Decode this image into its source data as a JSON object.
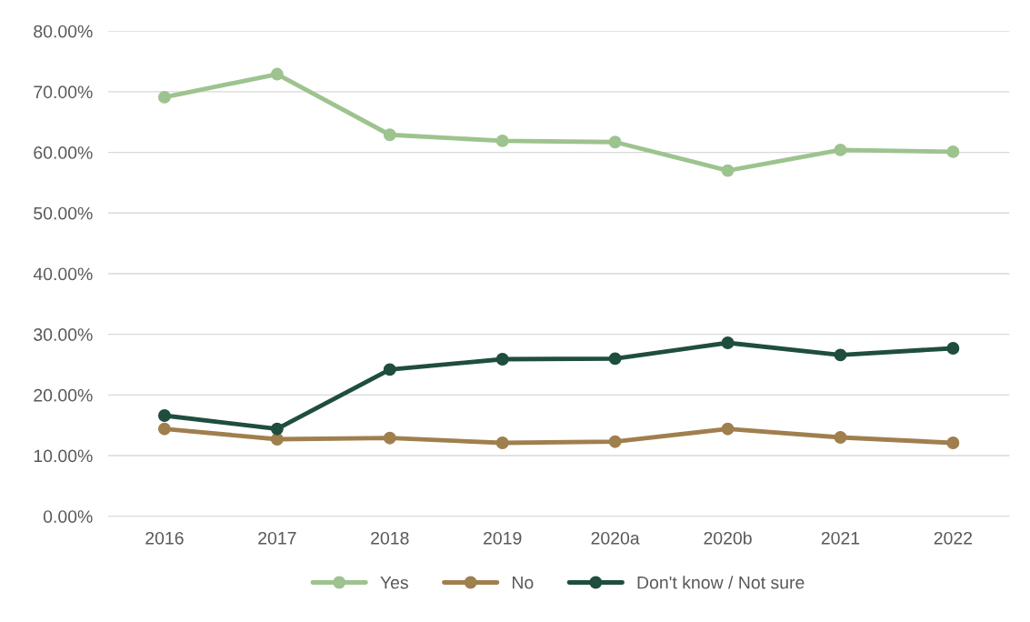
{
  "chart_data": {
    "type": "line",
    "categories": [
      "2016",
      "2017",
      "2018",
      "2019",
      "2020a",
      "2020b",
      "2021",
      "2022"
    ],
    "series": [
      {
        "name": "Yes",
        "color": "#9dc38f",
        "values": [
          69.1,
          72.9,
          62.9,
          61.9,
          61.7,
          57.0,
          60.4,
          60.1
        ]
      },
      {
        "name": "No",
        "color": "#a07f4e",
        "values": [
          14.4,
          12.7,
          12.9,
          12.1,
          12.3,
          14.4,
          13.0,
          12.1
        ]
      },
      {
        "name": "Don't know / Not sure",
        "color": "#1f4e3d",
        "values": [
          16.6,
          14.4,
          24.2,
          25.9,
          26.0,
          28.6,
          26.6,
          27.7
        ]
      }
    ],
    "ylim": [
      0,
      80
    ],
    "yticks": [
      {
        "value": 0,
        "label": "0.00%"
      },
      {
        "value": 10,
        "label": "10.00%"
      },
      {
        "value": 20,
        "label": "20.00%"
      },
      {
        "value": 30,
        "label": "30.00%"
      },
      {
        "value": 40,
        "label": "40.00%"
      },
      {
        "value": 50,
        "label": "50.00%"
      },
      {
        "value": 60,
        "label": "60.00%"
      },
      {
        "value": 70,
        "label": "70.00%"
      },
      {
        "value": 80,
        "label": "80.00%"
      }
    ],
    "grid": "y",
    "legend": "bottom",
    "marker": "circle",
    "line_style": "solid"
  }
}
